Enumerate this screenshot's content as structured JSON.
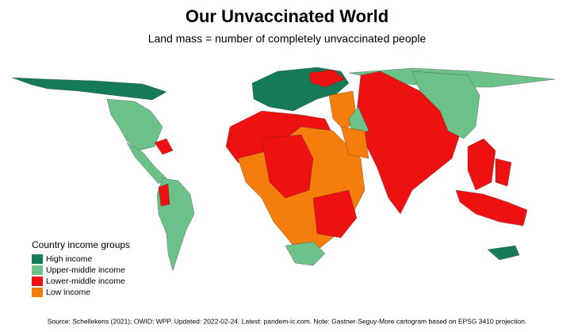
{
  "header": {
    "title": "Our Unvaccinated World",
    "subtitle": "Land mass = number of completely unvaccinated people"
  },
  "legend": {
    "title": "Country income groups",
    "items": [
      {
        "name": "High income",
        "color": "#157a56"
      },
      {
        "name": "Upper-middle income",
        "color": "#6cc08a"
      },
      {
        "name": "Lower-middle income",
        "color": "#ee1111"
      },
      {
        "name": "Low income",
        "color": "#f57d0c"
      }
    ]
  },
  "footer": {
    "source": "Source: Schellekens (2021); OWID; WPP. Updated: 2022-02-24. Latest: pandem-ic.com. Note: Gastner-Seguy-More cartogram based on EPSG 3410 projection."
  }
}
